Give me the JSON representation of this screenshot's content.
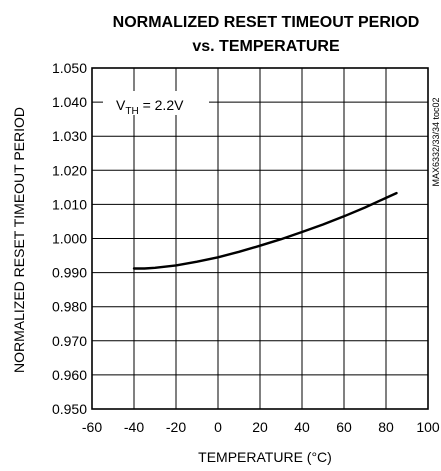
{
  "chart_data": {
    "type": "line",
    "title_line1": "NORMALIZED RESET TIMEOUT PERIOD",
    "title_line2": "vs. TEMPERATURE",
    "xlabel": "TEMPERATURE (°C)",
    "ylabel": "NORMALIZED RESET TIMEOUT PERIOD",
    "xlim": [
      -60,
      100
    ],
    "ylim": [
      0.95,
      1.05
    ],
    "x_ticks": [
      -60,
      -40,
      -20,
      0,
      20,
      40,
      60,
      80,
      100
    ],
    "x_tick_labels": [
      "-60",
      "-40",
      "-20",
      "0",
      "20",
      "40",
      "60",
      "80",
      "100"
    ],
    "y_ticks": [
      0.95,
      0.96,
      0.97,
      0.98,
      0.99,
      1.0,
      1.01,
      1.02,
      1.03,
      1.04,
      1.05
    ],
    "y_tick_labels": [
      "0.950",
      "0.960",
      "0.970",
      "0.980",
      "0.990",
      "1.000",
      "1.010",
      "1.020",
      "1.030",
      "1.040",
      "1.050"
    ],
    "grid": true,
    "annotation": {
      "prefix": "V",
      "sub": "TH",
      "suffix": " = 2.2V"
    },
    "watermark": "MAX6332/33/34 toc02",
    "series": [
      {
        "color": "#000000",
        "x": [
          -40,
          -35,
          -30,
          -20,
          -10,
          0,
          10,
          20,
          30,
          40,
          50,
          60,
          70,
          80,
          85
        ],
        "y": [
          0.9912,
          0.9912,
          0.9914,
          0.9921,
          0.9932,
          0.9945,
          0.9961,
          0.9979,
          0.9998,
          1.0019,
          1.0041,
          1.0065,
          1.0091,
          1.0119,
          1.0133
        ]
      }
    ]
  }
}
